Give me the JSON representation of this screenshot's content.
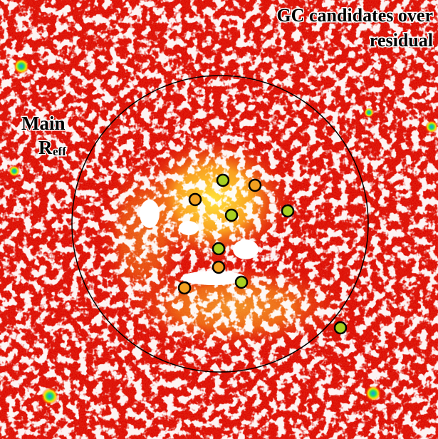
{
  "title_lines": [
    "GC candidates over",
    "residual"
  ],
  "label": {
    "main": "Main",
    "r": "R",
    "sub": "eff"
  }
}
